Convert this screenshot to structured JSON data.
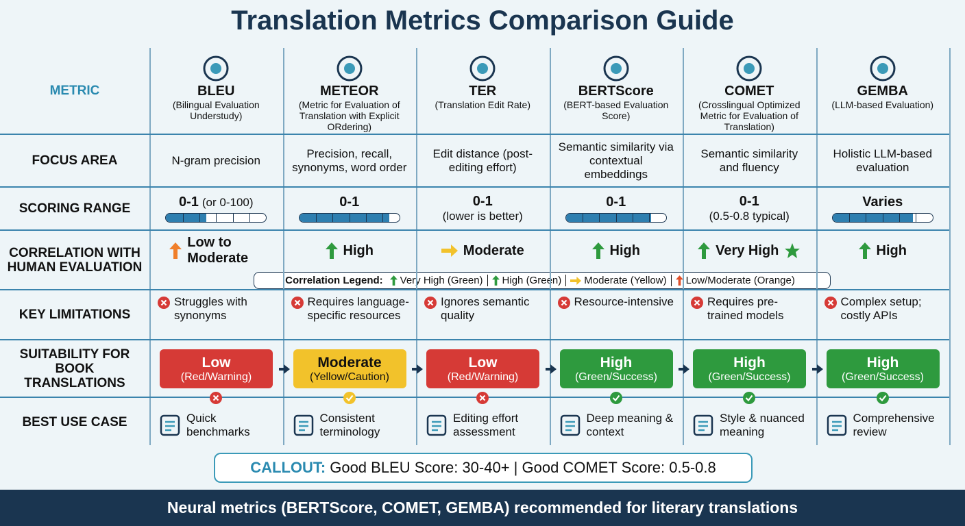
{
  "title": "Translation Metrics Comparison Guide",
  "header": {
    "label": "METRIC",
    "metrics": [
      {
        "name": "BLEU",
        "full": "(Bilingual Evaluation Understudy)"
      },
      {
        "name": "METEOR",
        "full": "(Metric for Evaluation of Translation with Explicit ORdering)"
      },
      {
        "name": "TER",
        "full": "(Translation Edit Rate)"
      },
      {
        "name": "BERTScore",
        "full": "(BERT-based Evaluation Score)"
      },
      {
        "name": "COMET",
        "full": "(Crosslingual Optimized Metric for Evaluation of Translation)"
      },
      {
        "name": "GEMBA",
        "full": "(LLM-based Evaluation)"
      }
    ]
  },
  "rows": [
    {
      "label": "FOCUS AREA",
      "cells": [
        "N-gram precision",
        "Precision, recall, synonyms, word order",
        "Edit distance (post-editing effort)",
        "Semantic similarity via contextual embeddings",
        "Semantic similarity and fluency",
        "Holistic LLM-based evaluation"
      ]
    },
    {
      "label": "SCORING RANGE",
      "cells": [
        {
          "range": "0-1",
          "note": "(or 0-100)"
        },
        {
          "range": "0-1"
        },
        {
          "range": "0-1",
          "note": "(lower is better)"
        },
        {
          "range": "0-1"
        },
        {
          "range": "0-1",
          "note": "(0.5-0.8 typical)"
        },
        {
          "range": "Varies"
        }
      ]
    },
    {
      "label": "CORRELATION WITH HUMAN EVALUATION",
      "cells": [
        "Low to Moderate",
        "High",
        "Moderate",
        "High",
        "Very High",
        "High"
      ]
    },
    {
      "label": "KEY LIMITATIONS",
      "cells": [
        "Struggles with synonyms",
        "Requires language-specific resources",
        "Ignores semantic quality",
        "Resource-intensive",
        "Requires pre-trained models",
        "Complex setup; costly APIs"
      ]
    },
    {
      "label": "SUITABILITY FOR BOOK TRANSLATIONS",
      "cells": [
        {
          "level": "Low",
          "note": "(Red/Warning)"
        },
        {
          "level": "Moderate",
          "note": "(Yellow/Caution)"
        },
        {
          "level": "Low",
          "note": "(Red/Warning)"
        },
        {
          "level": "High",
          "note": "(Green/Success)"
        },
        {
          "level": "High",
          "note": "(Green/Success)"
        },
        {
          "level": "High",
          "note": "(Green/Success)"
        }
      ]
    },
    {
      "label": "BEST USE CASE",
      "cells": [
        "Quick benchmarks",
        "Consistent terminology",
        "Editing effort assessment",
        "Deep meaning & context",
        "Style & nuanced meaning",
        "Comprehensive review"
      ]
    }
  ],
  "legend": {
    "title": "Correlation Legend:",
    "items": [
      "Very High (Green)",
      "High (Green)",
      "Moderate (Yellow)",
      "Low/Moderate (Orange)"
    ]
  },
  "callout": {
    "label": "CALLOUT:",
    "text": "Good BLEU Score: 30-40+ | Good COMET Score: 0.5-0.8"
  },
  "footer": "Neural metrics (BERTScore, COMET, GEMBA) recommended for literary translations"
}
